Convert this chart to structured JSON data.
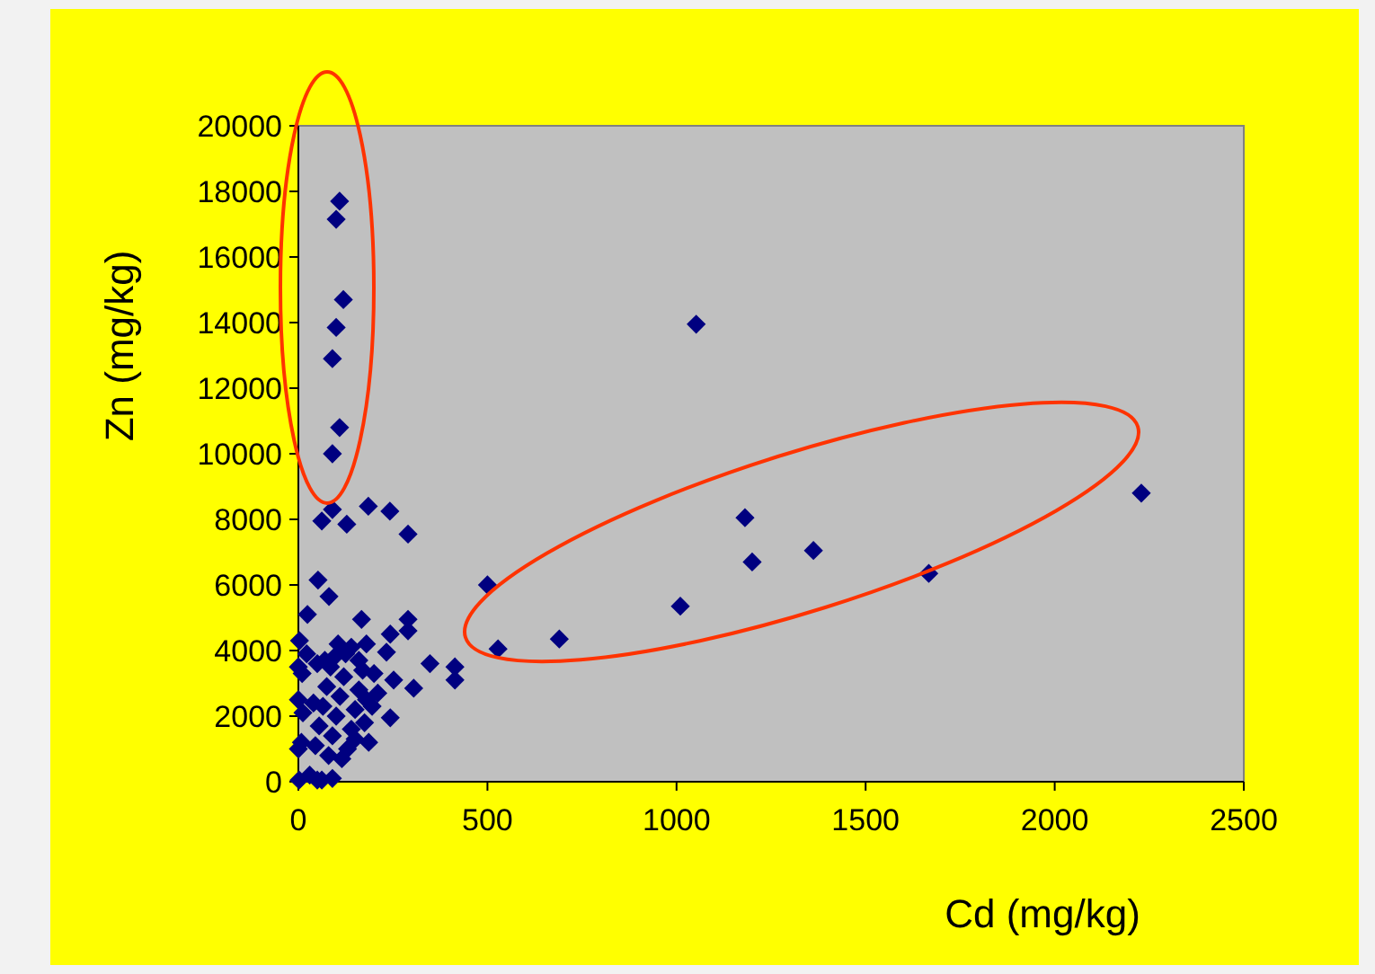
{
  "chart_data": {
    "type": "scatter",
    "xlabel": "Cd (mg/kg)",
    "ylabel": "Zn (mg/kg)",
    "xlim": [
      0,
      2500
    ],
    "xticks": [
      0,
      500,
      1000,
      1500,
      2000,
      2500
    ],
    "ylim": [
      0,
      20000
    ],
    "yticks": [
      0,
      2000,
      4000,
      6000,
      8000,
      10000,
      12000,
      14000,
      16000,
      18000,
      20000
    ],
    "grid": false,
    "marker": "diamond",
    "series": [
      {
        "color": "#000080",
        "x": [
          109,
          100,
          119,
          100,
          90,
          109,
          90,
          62,
          90,
          128,
          185,
          242,
          290,
          1052,
          1181,
          1200,
          1362,
          1667,
          2229,
          1010,
          690,
          528,
          500,
          52,
          81,
          24,
          167,
          290,
          243,
          290,
          348,
          414,
          414,
          305,
          252,
          233,
          243,
          186,
          62,
          8,
          12,
          40,
          10,
          50,
          22,
          80,
          45,
          90,
          55,
          100,
          65,
          110,
          75,
          120,
          85,
          95,
          130,
          140,
          150,
          160,
          125,
          105,
          170,
          180,
          200,
          140,
          30,
          2,
          50,
          90,
          115,
          150,
          175,
          195,
          210,
          160,
          180,
          70,
          0,
          0,
          0,
          3
        ],
        "values": [
          17700,
          17150,
          14700,
          13850,
          12900,
          10800,
          10000,
          7950,
          8300,
          7850,
          8400,
          8250,
          7550,
          13950,
          8050,
          6700,
          7050,
          6350,
          8800,
          5350,
          4350,
          4050,
          6000,
          6150,
          5650,
          5100,
          4950,
          4950,
          4500,
          4600,
          3600,
          3500,
          3100,
          2850,
          3100,
          3950,
          1950,
          1200,
          50,
          1200,
          2100,
          2400,
          3300,
          3600,
          3900,
          800,
          1100,
          1400,
          1700,
          2000,
          2300,
          2600,
          2900,
          3200,
          3500,
          3800,
          1000,
          1600,
          2200,
          2800,
          3900,
          4200,
          3400,
          2500,
          3300,
          4100,
          200,
          50,
          50,
          100,
          700,
          1300,
          1800,
          2300,
          2700,
          3700,
          4200,
          3700,
          1000,
          2500,
          3500,
          4300
        ]
      }
    ]
  }
}
